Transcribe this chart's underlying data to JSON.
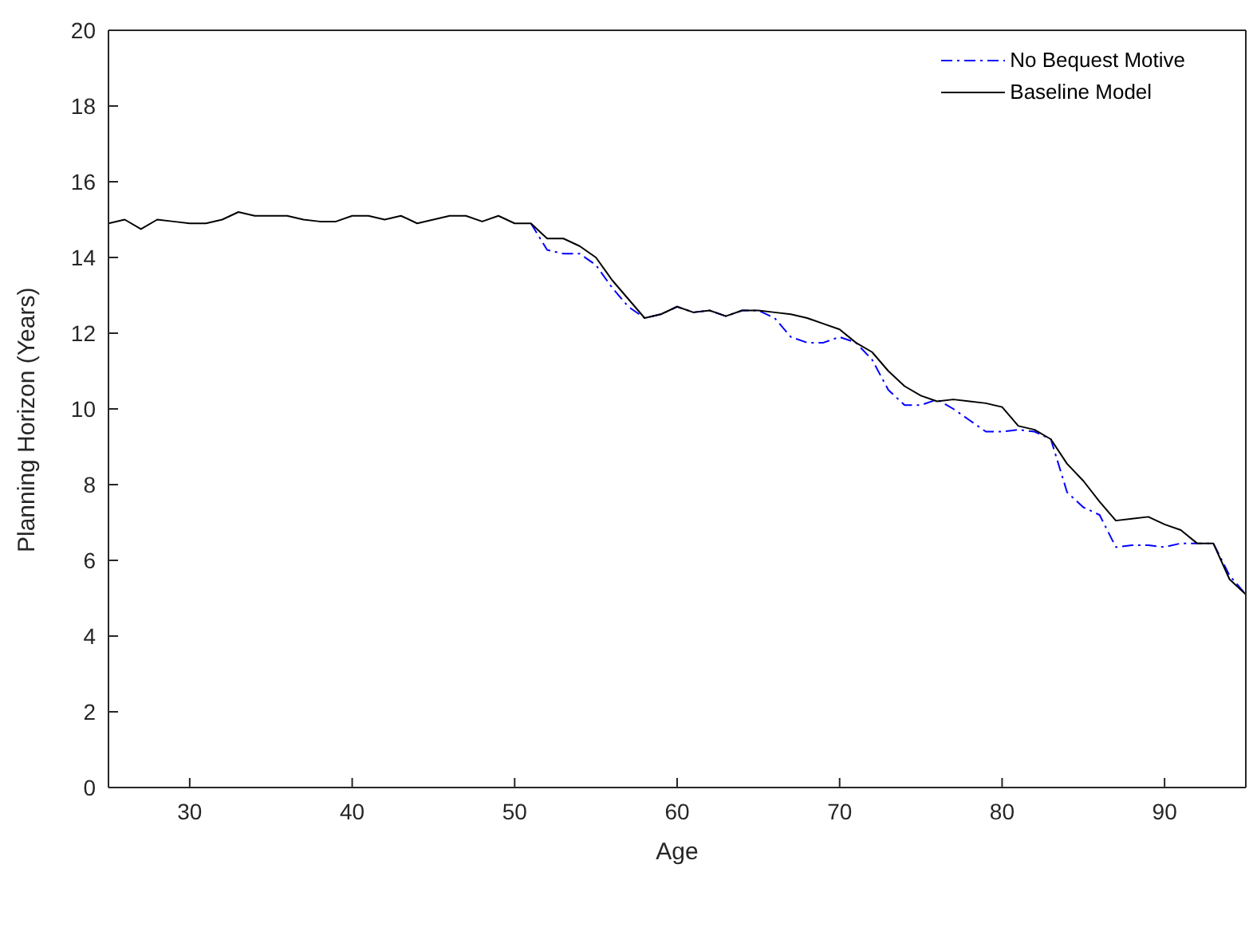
{
  "chart_data": {
    "type": "line",
    "xlabel": "Age",
    "ylabel": "Planning Horizon (Years)",
    "x": [
      25,
      26,
      27,
      28,
      29,
      30,
      31,
      32,
      33,
      34,
      35,
      36,
      37,
      38,
      39,
      40,
      41,
      42,
      43,
      44,
      45,
      46,
      47,
      48,
      49,
      50,
      51,
      52,
      53,
      54,
      55,
      56,
      57,
      58,
      59,
      60,
      61,
      62,
      63,
      64,
      65,
      66,
      67,
      68,
      69,
      70,
      71,
      72,
      73,
      74,
      75,
      76,
      77,
      78,
      79,
      80,
      81,
      82,
      83,
      84,
      85,
      86,
      87,
      88,
      89,
      90,
      91,
      92,
      93,
      94,
      95
    ],
    "series": [
      {
        "name": "No Bequest Motive",
        "color": "#0000ff",
        "line_style": "dashdot",
        "values": [
          null,
          null,
          null,
          null,
          null,
          null,
          null,
          null,
          null,
          null,
          null,
          null,
          null,
          null,
          null,
          null,
          null,
          null,
          null,
          null,
          null,
          null,
          null,
          null,
          null,
          null,
          14.9,
          14.2,
          14.1,
          14.1,
          13.8,
          13.2,
          12.7,
          12.4,
          12.5,
          12.7,
          12.55,
          12.6,
          12.45,
          12.6,
          12.6,
          12.4,
          11.9,
          11.75,
          11.75,
          11.9,
          11.75,
          11.3,
          10.5,
          10.1,
          10.1,
          10.25,
          10.0,
          9.7,
          9.4,
          9.4,
          9.45,
          9.4,
          9.2,
          7.8,
          7.4,
          7.2,
          6.35,
          6.4,
          6.4,
          6.35,
          6.45,
          6.45,
          6.45,
          5.6,
          5.1
        ]
      },
      {
        "name": "Baseline Model",
        "color": "#000000",
        "line_style": "solid",
        "values": [
          14.9,
          15.0,
          14.75,
          15.0,
          14.95,
          14.9,
          14.9,
          15.0,
          15.2,
          15.1,
          15.1,
          15.1,
          15.0,
          14.95,
          14.95,
          15.1,
          15.1,
          15.0,
          15.1,
          14.9,
          15.0,
          15.1,
          15.1,
          14.95,
          15.1,
          14.9,
          14.9,
          14.5,
          14.5,
          14.3,
          14.0,
          13.4,
          12.9,
          12.4,
          12.5,
          12.7,
          12.55,
          12.6,
          12.45,
          12.6,
          12.6,
          12.55,
          12.5,
          12.4,
          12.25,
          12.1,
          11.75,
          11.5,
          11.0,
          10.6,
          10.35,
          10.2,
          10.25,
          10.2,
          10.15,
          10.05,
          9.55,
          9.45,
          9.2,
          8.55,
          8.1,
          7.55,
          7.05,
          7.1,
          7.15,
          6.95,
          6.8,
          6.45,
          6.45,
          5.5,
          5.1
        ]
      }
    ],
    "xlim": [
      25,
      95
    ],
    "xticks": [
      30,
      40,
      50,
      60,
      70,
      80,
      90
    ],
    "ylim": [
      0,
      20
    ],
    "yticks": [
      0,
      2,
      4,
      6,
      8,
      10,
      12,
      14,
      16,
      18,
      20
    ],
    "grid": false,
    "legend": "top right",
    "marker": "none"
  }
}
